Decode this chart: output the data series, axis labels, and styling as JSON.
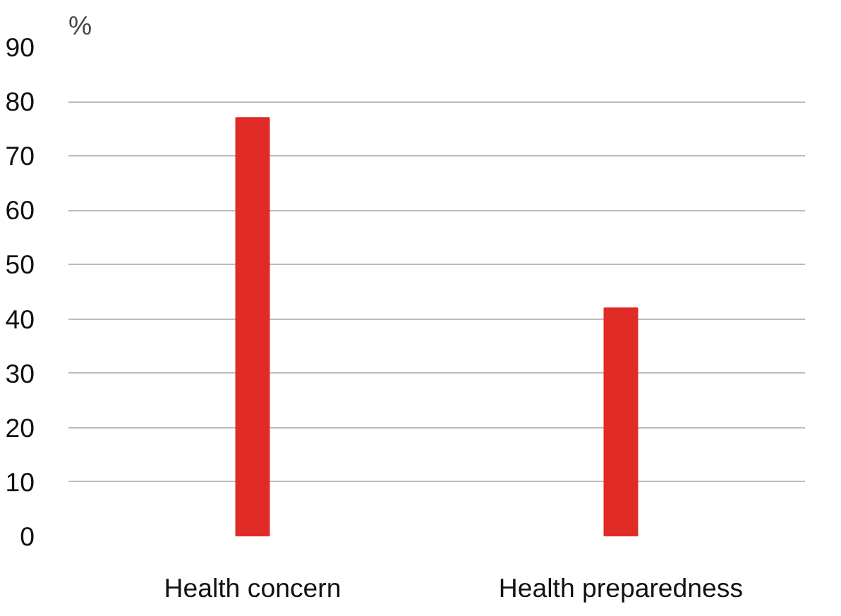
{
  "chart_data": {
    "type": "bar",
    "ylabel": "%",
    "categories": [
      "Health concern",
      "Health preparedness"
    ],
    "values": [
      77,
      42
    ],
    "color": "#e02b27",
    "ylim": [
      0,
      90
    ],
    "yticks": [
      0,
      10,
      20,
      30,
      40,
      50,
      60,
      70,
      80,
      90
    ],
    "grid": "y"
  }
}
